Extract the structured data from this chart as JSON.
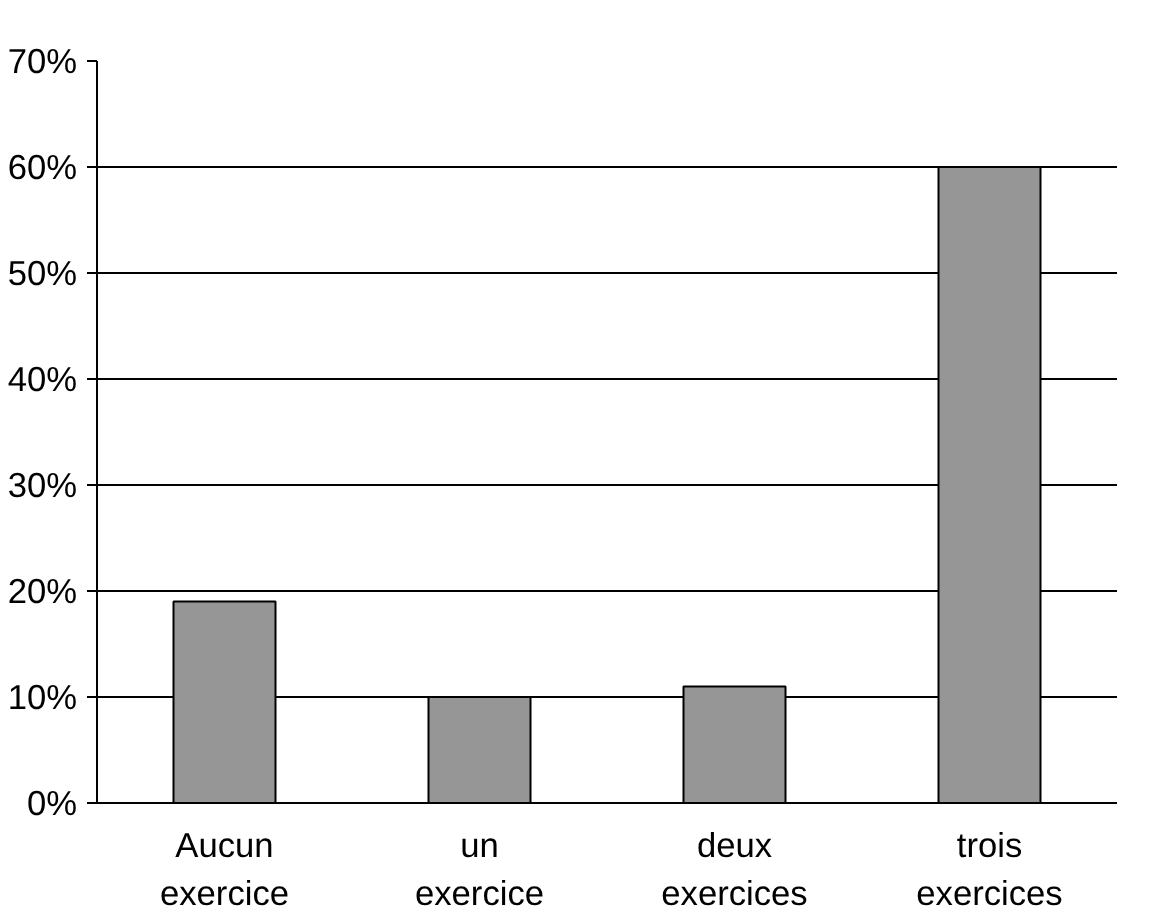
{
  "chart_data": {
    "type": "bar",
    "categories": [
      "Aucun exercice",
      "un exercice",
      "deux exercices",
      "trois exercices"
    ],
    "values": [
      19,
      10,
      11,
      60
    ],
    "color": "#969696",
    "ylim": [
      0,
      70
    ],
    "yticks": [
      {
        "value": 0,
        "label": "0%"
      },
      {
        "value": 10,
        "label": "10%"
      },
      {
        "value": 20,
        "label": "20%"
      },
      {
        "value": 30,
        "label": "30%"
      },
      {
        "value": 40,
        "label": "40%"
      },
      {
        "value": 50,
        "label": "50%"
      },
      {
        "value": 60,
        "label": "60%"
      },
      {
        "value": 70,
        "label": "70%"
      }
    ],
    "grid": "y"
  }
}
